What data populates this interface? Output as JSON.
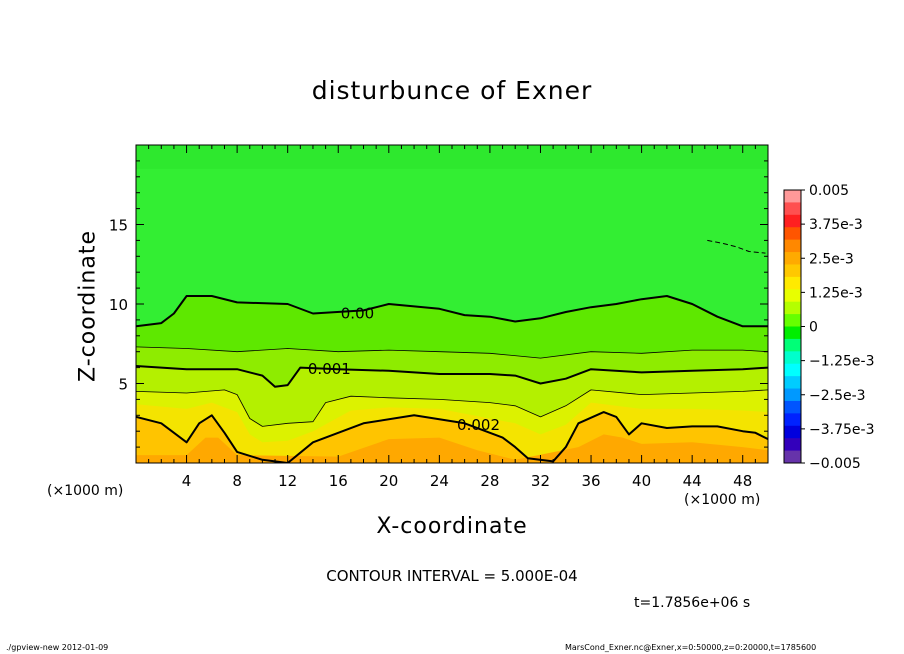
{
  "chart_data": {
    "type": "heatmap",
    "title": "disturbunce of Exner",
    "xlabel": "X-coordinate",
    "ylabel": "Z-coordinate",
    "x_unit_label": "(×1000 m)",
    "xlim": [
      0,
      50
    ],
    "ylim": [
      0,
      20
    ],
    "x_ticks": [
      4,
      8,
      12,
      16,
      20,
      24,
      28,
      32,
      36,
      40,
      44,
      48
    ],
    "y_ticks": [
      5,
      10,
      15
    ],
    "contour_interval_label": "CONTOUR INTERVAL = 5.000E-04",
    "time_label": "t=1.7856e+06 s",
    "contour_labels": [
      {
        "text": "0.00",
        "x": 16.2,
        "z": 9.4
      },
      {
        "text": "0.001",
        "x": 13.6,
        "z": 5.9
      },
      {
        "text": "0.002",
        "x": 25.4,
        "z": 2.4
      }
    ],
    "contours": [
      {
        "level": 0.002,
        "style": "major",
        "points": [
          [
            0,
            2.9
          ],
          [
            2,
            2.5
          ],
          [
            4,
            1.3
          ],
          [
            5,
            2.5
          ],
          [
            6,
            3.0
          ],
          [
            7,
            1.9
          ],
          [
            8,
            0.7
          ],
          [
            10,
            0.2
          ],
          [
            12,
            0.0
          ],
          [
            14,
            1.3
          ],
          [
            18,
            2.5
          ],
          [
            22,
            3.0
          ],
          [
            26,
            2.5
          ],
          [
            29,
            1.6
          ],
          [
            30,
            1.0
          ],
          [
            31,
            0.3
          ],
          [
            33,
            0.1
          ],
          [
            34,
            1.0
          ],
          [
            35,
            2.5
          ],
          [
            37,
            3.2
          ],
          [
            38,
            2.9
          ],
          [
            39,
            1.8
          ],
          [
            40,
            2.5
          ],
          [
            42,
            2.2
          ],
          [
            44,
            2.3
          ],
          [
            46,
            2.3
          ],
          [
            48,
            2.0
          ],
          [
            49,
            1.9
          ],
          [
            50,
            1.5
          ]
        ]
      },
      {
        "level": 0.0015,
        "style": "minor",
        "points": [
          [
            0,
            4.5
          ],
          [
            4,
            4.4
          ],
          [
            7,
            4.6
          ],
          [
            8,
            4.3
          ],
          [
            9,
            2.8
          ],
          [
            10,
            2.3
          ],
          [
            12,
            2.5
          ],
          [
            14,
            2.6
          ],
          [
            15,
            3.8
          ],
          [
            17,
            4.2
          ],
          [
            20,
            4.1
          ],
          [
            24,
            4.0
          ],
          [
            28,
            3.8
          ],
          [
            30,
            3.6
          ],
          [
            32,
            2.9
          ],
          [
            34,
            3.6
          ],
          [
            36,
            4.6
          ],
          [
            40,
            4.3
          ],
          [
            44,
            4.4
          ],
          [
            48,
            4.5
          ],
          [
            50,
            4.6
          ]
        ]
      },
      {
        "level": 0.001,
        "style": "major",
        "points": [
          [
            0,
            6.1
          ],
          [
            4,
            5.9
          ],
          [
            8,
            5.9
          ],
          [
            10,
            5.5
          ],
          [
            11,
            4.8
          ],
          [
            12,
            4.9
          ],
          [
            13,
            6.0
          ],
          [
            16,
            5.9
          ],
          [
            20,
            5.8
          ],
          [
            24,
            5.6
          ],
          [
            28,
            5.6
          ],
          [
            30,
            5.5
          ],
          [
            32,
            5.0
          ],
          [
            34,
            5.3
          ],
          [
            36,
            5.9
          ],
          [
            40,
            5.7
          ],
          [
            44,
            5.8
          ],
          [
            48,
            5.9
          ],
          [
            50,
            6.0
          ]
        ]
      },
      {
        "level": 0.0005,
        "style": "minor",
        "points": [
          [
            0,
            7.3
          ],
          [
            4,
            7.2
          ],
          [
            8,
            7.0
          ],
          [
            12,
            7.2
          ],
          [
            16,
            7.0
          ],
          [
            20,
            7.1
          ],
          [
            24,
            7.0
          ],
          [
            28,
            6.9
          ],
          [
            32,
            6.6
          ],
          [
            36,
            7.0
          ],
          [
            40,
            6.9
          ],
          [
            44,
            7.1
          ],
          [
            48,
            7.1
          ],
          [
            50,
            7.0
          ]
        ]
      },
      {
        "level": 0.0,
        "style": "major",
        "points": [
          [
            0,
            8.6
          ],
          [
            2,
            8.8
          ],
          [
            3,
            9.4
          ],
          [
            4,
            10.5
          ],
          [
            6,
            10.5
          ],
          [
            8,
            10.1
          ],
          [
            12,
            10.0
          ],
          [
            14,
            9.4
          ],
          [
            18,
            9.6
          ],
          [
            20,
            10.0
          ],
          [
            24,
            9.7
          ],
          [
            26,
            9.3
          ],
          [
            28,
            9.2
          ],
          [
            30,
            8.9
          ],
          [
            32,
            9.1
          ],
          [
            34,
            9.5
          ],
          [
            36,
            9.8
          ],
          [
            38,
            10.0
          ],
          [
            40,
            10.3
          ],
          [
            42,
            10.5
          ],
          [
            44,
            10.0
          ],
          [
            46,
            9.2
          ],
          [
            48,
            8.6
          ],
          [
            50,
            8.6
          ]
        ]
      },
      {
        "level": -0.0005,
        "style": "dashed",
        "points": [
          [
            45.2,
            14.0
          ],
          [
            46.5,
            13.8
          ],
          [
            47.5,
            13.6
          ],
          [
            48.5,
            13.3
          ],
          [
            49.8,
            13.2
          ]
        ]
      }
    ],
    "colorbar": {
      "labels": [
        "0.005",
        "3.75e-3",
        "2.5e-3",
        "1.25e-3",
        "0",
        "−1.25e-3",
        "−2.5e-3",
        "−3.75e-3",
        "−0.005"
      ],
      "colors": [
        "#ff9999",
        "#ff5050",
        "#ff2020",
        "#ff5500",
        "#ff8800",
        "#ffaa00",
        "#ffc800",
        "#ffea00",
        "#e8ff00",
        "#b4ff00",
        "#66ff00",
        "#00ee00",
        "#00ff77",
        "#00ffcc",
        "#00ffff",
        "#00ccff",
        "#0099ff",
        "#0055ff",
        "#0022ff",
        "#0000dd",
        "#3300bb",
        "#6633aa"
      ]
    },
    "field_bands": [
      {
        "lower": null,
        "color": "#ffa800",
        "points": [
          [
            0,
            0.5
          ],
          [
            4,
            0.5
          ],
          [
            5.5,
            1.6
          ],
          [
            6.5,
            1.6
          ],
          [
            8,
            0.5
          ],
          [
            16,
            0.4
          ],
          [
            20,
            1.5
          ],
          [
            24,
            1.6
          ],
          [
            27,
            0.8
          ],
          [
            30,
            0.2
          ],
          [
            35,
            1.0
          ],
          [
            37,
            1.8
          ],
          [
            38.5,
            1.6
          ],
          [
            40,
            1.2
          ],
          [
            44,
            1.3
          ],
          [
            48,
            1.0
          ],
          [
            50,
            0.8
          ]
        ]
      },
      {
        "lower": null,
        "color": "#ffc400",
        "points": [
          [
            0,
            2.9
          ],
          [
            2,
            2.5
          ],
          [
            4,
            1.3
          ],
          [
            5,
            2.5
          ],
          [
            6,
            3.0
          ],
          [
            7,
            1.9
          ],
          [
            8,
            0.7
          ],
          [
            10,
            0.2
          ],
          [
            12,
            0.0
          ],
          [
            14,
            1.3
          ],
          [
            18,
            2.5
          ],
          [
            22,
            3.0
          ],
          [
            26,
            2.5
          ],
          [
            29,
            1.6
          ],
          [
            30,
            1.0
          ],
          [
            31,
            0.3
          ],
          [
            33,
            0.1
          ],
          [
            34,
            1.0
          ],
          [
            35,
            2.5
          ],
          [
            37,
            3.2
          ],
          [
            38,
            2.9
          ],
          [
            39,
            1.8
          ],
          [
            40,
            2.5
          ],
          [
            42,
            2.2
          ],
          [
            44,
            2.3
          ],
          [
            46,
            2.3
          ],
          [
            48,
            2.0
          ],
          [
            49,
            1.9
          ],
          [
            50,
            1.5
          ]
        ]
      },
      {
        "lower": null,
        "color": "#f4e400",
        "points": [
          [
            0,
            3.7
          ],
          [
            4,
            3.4
          ],
          [
            6,
            3.8
          ],
          [
            8,
            3.2
          ],
          [
            9,
            1.8
          ],
          [
            10,
            1.3
          ],
          [
            12,
            1.4
          ],
          [
            14,
            2.0
          ],
          [
            17,
            3.3
          ],
          [
            20,
            3.5
          ],
          [
            24,
            3.4
          ],
          [
            28,
            2.8
          ],
          [
            30,
            2.5
          ],
          [
            32,
            1.8
          ],
          [
            34,
            2.4
          ],
          [
            36,
            3.8
          ],
          [
            38,
            3.6
          ],
          [
            40,
            3.4
          ],
          [
            44,
            3.4
          ],
          [
            48,
            3.3
          ],
          [
            50,
            3.2
          ]
        ]
      },
      {
        "lower": null,
        "color": "#dcf200",
        "points": [
          [
            0,
            4.5
          ],
          [
            4,
            4.4
          ],
          [
            7,
            4.6
          ],
          [
            8,
            4.3
          ],
          [
            9,
            2.8
          ],
          [
            10,
            2.3
          ],
          [
            12,
            2.5
          ],
          [
            14,
            2.6
          ],
          [
            15,
            3.8
          ],
          [
            17,
            4.2
          ],
          [
            20,
            4.1
          ],
          [
            24,
            4.0
          ],
          [
            28,
            3.8
          ],
          [
            30,
            3.6
          ],
          [
            32,
            2.9
          ],
          [
            34,
            3.6
          ],
          [
            36,
            4.6
          ],
          [
            40,
            4.3
          ],
          [
            44,
            4.4
          ],
          [
            48,
            4.5
          ],
          [
            50,
            4.6
          ]
        ]
      },
      {
        "lower": null,
        "color": "#b4f000",
        "points": [
          [
            0,
            6.1
          ],
          [
            4,
            5.9
          ],
          [
            8,
            5.9
          ],
          [
            10,
            5.5
          ],
          [
            11,
            4.8
          ],
          [
            12,
            4.9
          ],
          [
            13,
            6.0
          ],
          [
            16,
            5.9
          ],
          [
            20,
            5.8
          ],
          [
            24,
            5.6
          ],
          [
            28,
            5.6
          ],
          [
            30,
            5.5
          ],
          [
            32,
            5.0
          ],
          [
            34,
            5.3
          ],
          [
            36,
            5.9
          ],
          [
            40,
            5.7
          ],
          [
            44,
            5.8
          ],
          [
            48,
            5.9
          ],
          [
            50,
            6.0
          ]
        ]
      },
      {
        "lower": null,
        "color": "#8eec00",
        "points": [
          [
            0,
            7.3
          ],
          [
            4,
            7.2
          ],
          [
            8,
            7.0
          ],
          [
            12,
            7.2
          ],
          [
            16,
            7.0
          ],
          [
            20,
            7.1
          ],
          [
            24,
            7.0
          ],
          [
            28,
            6.9
          ],
          [
            32,
            6.6
          ],
          [
            36,
            7.0
          ],
          [
            40,
            6.9
          ],
          [
            44,
            7.1
          ],
          [
            48,
            7.1
          ],
          [
            50,
            7.0
          ]
        ]
      },
      {
        "lower": null,
        "color": "#5ee800",
        "points": [
          [
            0,
            8.6
          ],
          [
            2,
            8.8
          ],
          [
            3,
            9.4
          ],
          [
            4,
            10.5
          ],
          [
            6,
            10.5
          ],
          [
            8,
            10.1
          ],
          [
            12,
            10.0
          ],
          [
            14,
            9.4
          ],
          [
            18,
            9.6
          ],
          [
            20,
            10.0
          ],
          [
            24,
            9.7
          ],
          [
            26,
            9.3
          ],
          [
            28,
            9.2
          ],
          [
            30,
            8.9
          ],
          [
            32,
            9.1
          ],
          [
            34,
            9.5
          ],
          [
            36,
            9.8
          ],
          [
            38,
            10.0
          ],
          [
            40,
            10.3
          ],
          [
            42,
            10.5
          ],
          [
            44,
            10.0
          ],
          [
            46,
            9.2
          ],
          [
            48,
            8.6
          ],
          [
            50,
            8.6
          ]
        ]
      }
    ]
  },
  "footer": {
    "left": "./gpview-new   2012-01-09",
    "right": "MarsCond_Exner.nc@Exner,x=0:50000,z=0:20000,t=1785600"
  }
}
